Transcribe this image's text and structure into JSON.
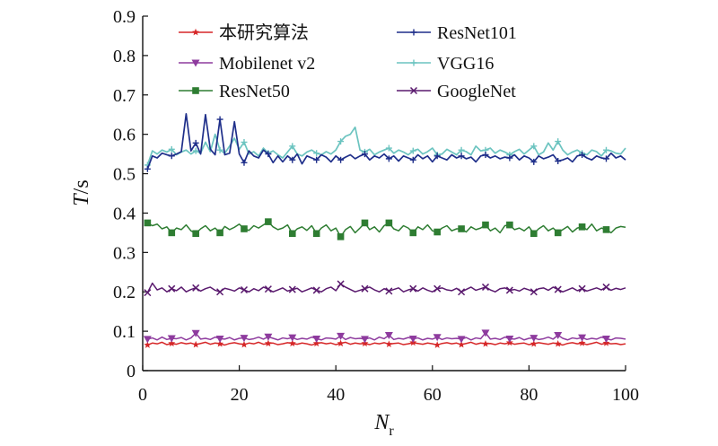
{
  "chart_data": {
    "type": "line",
    "xlabel": "N",
    "xlabel_sub": "r",
    "ylabel": "T",
    "ylabel_unit": "/s",
    "xlim": [
      0,
      100
    ],
    "ylim": [
      0,
      0.9
    ],
    "xticks": [
      "0",
      "20",
      "40",
      "60",
      "80",
      "100"
    ],
    "yticks": [
      "0",
      "0.1",
      "0.2",
      "0.3",
      "0.4",
      "0.5",
      "0.6",
      "0.7",
      "0.8",
      "0.9"
    ],
    "grid": false,
    "legend_position": "top",
    "x": [
      1,
      2,
      3,
      4,
      5,
      6,
      7,
      8,
      9,
      10,
      11,
      12,
      13,
      14,
      15,
      16,
      17,
      18,
      19,
      20,
      21,
      22,
      23,
      24,
      25,
      26,
      27,
      28,
      29,
      30,
      31,
      32,
      33,
      34,
      35,
      36,
      37,
      38,
      39,
      40,
      41,
      42,
      43,
      44,
      45,
      46,
      47,
      48,
      49,
      50,
      51,
      52,
      53,
      54,
      55,
      56,
      57,
      58,
      59,
      60,
      61,
      62,
      63,
      64,
      65,
      66,
      67,
      68,
      69,
      70,
      71,
      72,
      73,
      74,
      75,
      76,
      77,
      78,
      79,
      80,
      81,
      82,
      83,
      84,
      85,
      86,
      87,
      88,
      89,
      90,
      91,
      92,
      93,
      94,
      95,
      96,
      97,
      98,
      99,
      100
    ],
    "series": [
      {
        "name": "本研究算法",
        "color": "#d62728",
        "marker": "star",
        "values": [
          0.065,
          0.07,
          0.068,
          0.072,
          0.066,
          0.069,
          0.067,
          0.071,
          0.068,
          0.07,
          0.066,
          0.069,
          0.072,
          0.067,
          0.07,
          0.068,
          0.065,
          0.069,
          0.071,
          0.068,
          0.066,
          0.07,
          0.068,
          0.072,
          0.067,
          0.069,
          0.07,
          0.066,
          0.068,
          0.071,
          0.069,
          0.067,
          0.07,
          0.068,
          0.065,
          0.069,
          0.071,
          0.068,
          0.07,
          0.066,
          0.069,
          0.072,
          0.067,
          0.07,
          0.068,
          0.069,
          0.066,
          0.07,
          0.068,
          0.071,
          0.067,
          0.069,
          0.07,
          0.066,
          0.068,
          0.071,
          0.069,
          0.067,
          0.07,
          0.068,
          0.065,
          0.069,
          0.071,
          0.068,
          0.07,
          0.066,
          0.069,
          0.072,
          0.067,
          0.07,
          0.068,
          0.069,
          0.066,
          0.07,
          0.068,
          0.071,
          0.067,
          0.069,
          0.07,
          0.066,
          0.068,
          0.071,
          0.069,
          0.067,
          0.07,
          0.068,
          0.065,
          0.069,
          0.071,
          0.068,
          0.07,
          0.066,
          0.069,
          0.072,
          0.067,
          0.07,
          0.068,
          0.069,
          0.066,
          0.068
        ]
      },
      {
        "name": "Mobilenet v2",
        "color": "#8e3b9e",
        "marker": "tri-down",
        "values": [
          0.08,
          0.083,
          0.078,
          0.085,
          0.079,
          0.082,
          0.081,
          0.084,
          0.078,
          0.083,
          0.095,
          0.08,
          0.082,
          0.079,
          0.085,
          0.081,
          0.08,
          0.084,
          0.078,
          0.082,
          0.083,
          0.079,
          0.081,
          0.085,
          0.08,
          0.086,
          0.082,
          0.078,
          0.083,
          0.081,
          0.084,
          0.079,
          0.082,
          0.08,
          0.085,
          0.081,
          0.078,
          0.083,
          0.082,
          0.08,
          0.088,
          0.079,
          0.084,
          0.081,
          0.082,
          0.08,
          0.083,
          0.078,
          0.085,
          0.081,
          0.09,
          0.079,
          0.082,
          0.08,
          0.084,
          0.081,
          0.083,
          0.078,
          0.082,
          0.08,
          0.085,
          0.079,
          0.083,
          0.081,
          0.082,
          0.08,
          0.084,
          0.078,
          0.083,
          0.081,
          0.096,
          0.08,
          0.082,
          0.079,
          0.085,
          0.081,
          0.08,
          0.084,
          0.078,
          0.082,
          0.083,
          0.079,
          0.081,
          0.085,
          0.08,
          0.09,
          0.082,
          0.078,
          0.083,
          0.081,
          0.084,
          0.079,
          0.082,
          0.08,
          0.085,
          0.081,
          0.078,
          0.083,
          0.082,
          0.08
        ]
      },
      {
        "name": "ResNet50",
        "color": "#2e7d32",
        "marker": "square",
        "values": [
          0.375,
          0.368,
          0.372,
          0.36,
          0.365,
          0.35,
          0.362,
          0.358,
          0.37,
          0.355,
          0.348,
          0.36,
          0.368,
          0.355,
          0.362,
          0.35,
          0.366,
          0.358,
          0.364,
          0.372,
          0.36,
          0.356,
          0.368,
          0.362,
          0.37,
          0.378,
          0.365,
          0.358,
          0.362,
          0.37,
          0.348,
          0.36,
          0.365,
          0.356,
          0.368,
          0.348,
          0.362,
          0.37,
          0.355,
          0.362,
          0.34,
          0.358,
          0.366,
          0.35,
          0.362,
          0.375,
          0.358,
          0.365,
          0.352,
          0.368,
          0.375,
          0.36,
          0.355,
          0.368,
          0.362,
          0.35,
          0.365,
          0.358,
          0.37,
          0.355,
          0.352,
          0.362,
          0.368,
          0.355,
          0.36,
          0.36,
          0.352,
          0.365,
          0.358,
          0.362,
          0.37,
          0.355,
          0.362,
          0.35,
          0.368,
          0.37,
          0.358,
          0.362,
          0.355,
          0.365,
          0.348,
          0.36,
          0.368,
          0.355,
          0.362,
          0.35,
          0.358,
          0.366,
          0.352,
          0.362,
          0.365,
          0.358,
          0.372,
          0.355,
          0.362,
          0.358,
          0.35,
          0.362,
          0.366,
          0.364
        ]
      },
      {
        "name": "GoogleNet",
        "color": "#5a1a6e",
        "marker": "x",
        "values": [
          0.198,
          0.222,
          0.205,
          0.21,
          0.2,
          0.208,
          0.203,
          0.212,
          0.2,
          0.206,
          0.21,
          0.202,
          0.208,
          0.212,
          0.204,
          0.2,
          0.209,
          0.206,
          0.202,
          0.21,
          0.205,
          0.2,
          0.208,
          0.203,
          0.212,
          0.207,
          0.2,
          0.205,
          0.21,
          0.202,
          0.206,
          0.209,
          0.2,
          0.205,
          0.21,
          0.204,
          0.2,
          0.208,
          0.212,
          0.203,
          0.22,
          0.212,
          0.206,
          0.2,
          0.204,
          0.208,
          0.212,
          0.205,
          0.2,
          0.208,
          0.202,
          0.206,
          0.21,
          0.2,
          0.205,
          0.208,
          0.202,
          0.21,
          0.204,
          0.2,
          0.208,
          0.21,
          0.205,
          0.203,
          0.209,
          0.2,
          0.206,
          0.212,
          0.204,
          0.208,
          0.212,
          0.205,
          0.2,
          0.208,
          0.21,
          0.204,
          0.206,
          0.202,
          0.209,
          0.205,
          0.2,
          0.208,
          0.21,
          0.204,
          0.212,
          0.206,
          0.2,
          0.205,
          0.21,
          0.203,
          0.208,
          0.202,
          0.206,
          0.21,
          0.205,
          0.212,
          0.204,
          0.209,
          0.206,
          0.21
        ]
      },
      {
        "name": "ResNet101",
        "color": "#1f2f8a",
        "marker": "plus",
        "values": [
          0.512,
          0.545,
          0.54,
          0.552,
          0.548,
          0.545,
          0.55,
          0.556,
          0.652,
          0.558,
          0.578,
          0.55,
          0.65,
          0.562,
          0.548,
          0.638,
          0.548,
          0.552,
          0.632,
          0.55,
          0.528,
          0.558,
          0.545,
          0.54,
          0.56,
          0.55,
          0.528,
          0.545,
          0.53,
          0.545,
          0.535,
          0.55,
          0.525,
          0.545,
          0.54,
          0.535,
          0.548,
          0.542,
          0.53,
          0.545,
          0.535,
          0.542,
          0.548,
          0.538,
          0.545,
          0.55,
          0.535,
          0.545,
          0.54,
          0.55,
          0.538,
          0.545,
          0.532,
          0.545,
          0.54,
          0.535,
          0.548,
          0.538,
          0.545,
          0.53,
          0.545,
          0.54,
          0.535,
          0.548,
          0.54,
          0.545,
          0.538,
          0.542,
          0.53,
          0.545,
          0.548,
          0.54,
          0.545,
          0.538,
          0.542,
          0.54,
          0.548,
          0.535,
          0.545,
          0.54,
          0.53,
          0.545,
          0.538,
          0.542,
          0.548,
          0.532,
          0.535,
          0.54,
          0.53,
          0.545,
          0.548,
          0.54,
          0.535,
          0.545,
          0.54,
          0.538,
          0.552,
          0.54,
          0.545,
          0.535
        ]
      },
      {
        "name": "VGG16",
        "color": "#6cc4c0",
        "marker": "plus",
        "values": [
          0.522,
          0.558,
          0.55,
          0.56,
          0.555,
          0.562,
          0.548,
          0.555,
          0.56,
          0.55,
          0.558,
          0.552,
          0.58,
          0.556,
          0.6,
          0.56,
          0.552,
          0.57,
          0.59,
          0.562,
          0.58,
          0.55,
          0.556,
          0.545,
          0.565,
          0.552,
          0.558,
          0.548,
          0.54,
          0.555,
          0.57,
          0.55,
          0.545,
          0.555,
          0.56,
          0.552,
          0.548,
          0.556,
          0.55,
          0.56,
          0.582,
          0.595,
          0.6,
          0.618,
          0.56,
          0.555,
          0.562,
          0.548,
          0.555,
          0.56,
          0.565,
          0.552,
          0.56,
          0.555,
          0.548,
          0.558,
          0.562,
          0.55,
          0.556,
          0.565,
          0.548,
          0.55,
          0.562,
          0.555,
          0.548,
          0.56,
          0.556,
          0.548,
          0.57,
          0.558,
          0.56,
          0.565,
          0.552,
          0.56,
          0.555,
          0.548,
          0.556,
          0.562,
          0.55,
          0.56,
          0.57,
          0.548,
          0.555,
          0.578,
          0.56,
          0.582,
          0.56,
          0.548,
          0.555,
          0.56,
          0.552,
          0.548,
          0.56,
          0.556,
          0.545,
          0.56,
          0.558,
          0.552,
          0.55,
          0.565
        ]
      }
    ]
  }
}
